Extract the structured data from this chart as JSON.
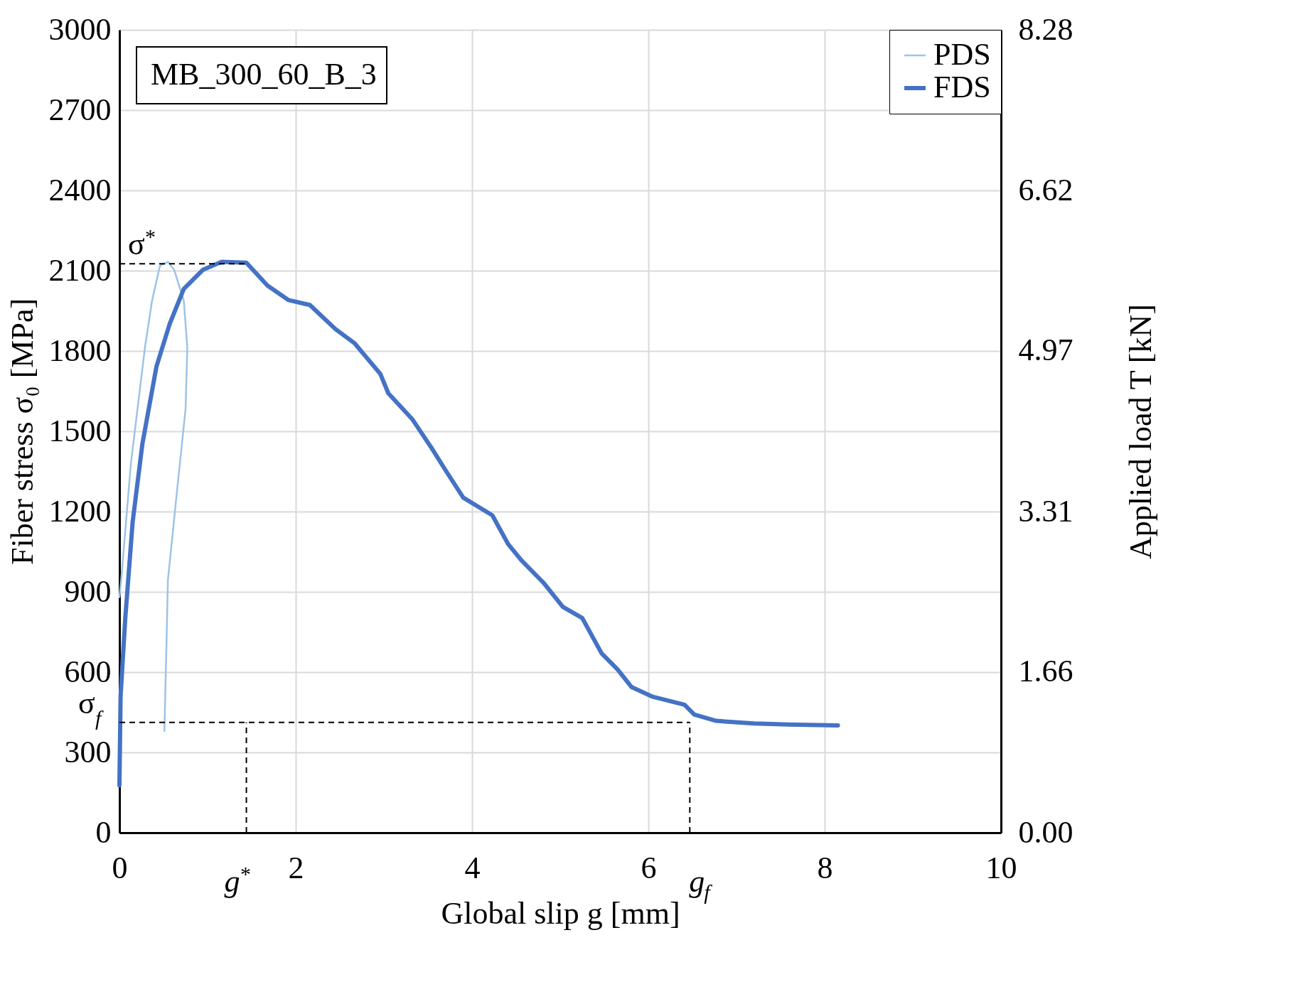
{
  "chart_data": {
    "type": "line",
    "xlabel": "Global slip g [mm]",
    "ylabel": "Fiber stress σ₀ [MPa]",
    "y2label": "Applied load T [kN]",
    "xlim": [
      0,
      10
    ],
    "xticks": [
      0,
      2,
      4,
      6,
      8,
      10
    ],
    "ylim": [
      0,
      3000
    ],
    "yticks": [
      0,
      300,
      600,
      900,
      1200,
      1500,
      1800,
      2100,
      2400,
      2700,
      3000
    ],
    "y2lim": [
      0,
      8.28
    ],
    "y2ticks": [
      {
        "value": 0,
        "label": "0.00"
      },
      1.66,
      3.31,
      4.97,
      6.62,
      8.28
    ],
    "grid": true,
    "legend": "top right",
    "line_style": "solid",
    "marker": "none",
    "annotations": [
      "MB_300_60_B_3"
    ],
    "ref_lines": [
      {
        "axis": "y",
        "value": 2126,
        "label": "σ$^{*}$",
        "line_style": "dashed",
        "color": "#000000"
      },
      {
        "axis": "x",
        "value": 1.44,
        "label": "g$^{*}$",
        "line_style": "dashed",
        "color": "#000000"
      },
      {
        "axis": "y",
        "value": 412,
        "label": "σ$_{f}$",
        "line_style": "dashed",
        "color": "#000000"
      },
      {
        "axis": "x",
        "value": 6.47,
        "label": "g$_{f}$",
        "line_style": "dashed",
        "color": "#000000"
      }
    ],
    "series": [
      {
        "name": "PDS",
        "color": "#9dc3e6",
        "x": [
          0,
          0.02,
          0.13,
          0.29,
          0.37,
          0.46,
          0.55,
          0.62,
          0.73,
          0.77,
          0.75,
          0.64,
          0.55,
          0.53,
          0.51
        ],
        "values": [
          880,
          945,
          1380,
          1814,
          1988,
          2119,
          2133,
          2104,
          1988,
          1814,
          1583,
          1235,
          945,
          655,
          380
        ]
      },
      {
        "name": "FDS",
        "color": "#4472c4",
        "x": [
          0,
          0.013,
          0.066,
          0.15,
          0.26,
          0.42,
          0.57,
          0.73,
          0.95,
          1.16,
          1.44,
          1.68,
          1.92,
          2.16,
          2.45,
          2.67,
          2.96,
          3.05,
          3.32,
          3.54,
          3.7,
          3.9,
          4.23,
          4.41,
          4.56,
          4.81,
          5.03,
          5.25,
          5.47,
          5.65,
          5.81,
          6.05,
          6.41,
          6.52,
          6.77,
          7.2,
          7.6,
          8.15
        ],
        "values": [
          177,
          510,
          800,
          1162,
          1452,
          1742,
          1901,
          2032,
          2104,
          2133,
          2130,
          2044,
          1990,
          1972,
          1882,
          1828,
          1714,
          1642,
          1546,
          1438,
          1354,
          1252,
          1186,
          1078,
          1018,
          934,
          844,
          802,
          670,
          610,
          544,
          508,
          478,
          442,
          418,
          408,
          404,
          401
        ]
      }
    ]
  }
}
